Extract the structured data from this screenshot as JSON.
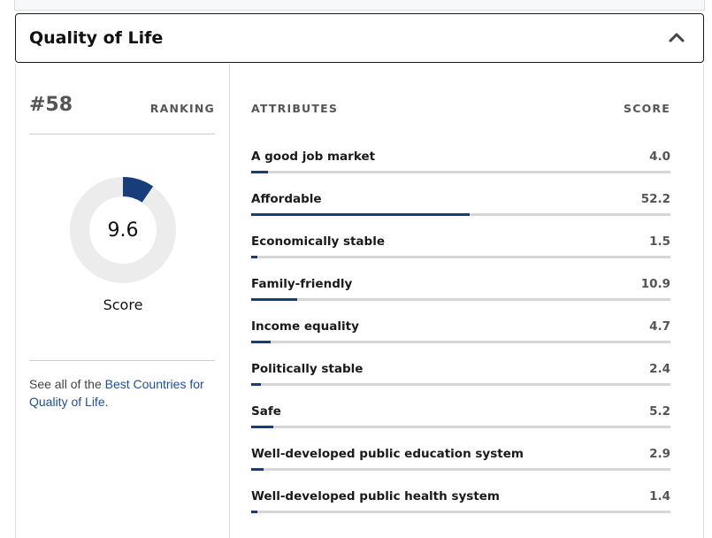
{
  "panel": {
    "title": "Quality of Life"
  },
  "summary": {
    "rank": "#58",
    "rank_label": "RANKING",
    "score": "9.6",
    "score_fraction": 0.096,
    "score_label": "Score",
    "see_all_prefix": "See all of the ",
    "see_all_link": "Best Countries for Quality of Life",
    "see_all_suffix": "."
  },
  "attributes": {
    "header_label": "ATTRIBUTES",
    "score_header": "SCORE",
    "items": [
      {
        "label": "A good job market",
        "score": "4.0"
      },
      {
        "label": "Affordable",
        "score": "52.2"
      },
      {
        "label": "Economically stable",
        "score": "1.5"
      },
      {
        "label": "Family-friendly",
        "score": "10.9"
      },
      {
        "label": "Income equality",
        "score": "4.7"
      },
      {
        "label": "Politically stable",
        "score": "2.4"
      },
      {
        "label": "Safe",
        "score": "5.2"
      },
      {
        "label": "Well-developed public education system",
        "score": "2.9"
      },
      {
        "label": "Well-developed public health system",
        "score": "1.4"
      }
    ]
  },
  "colors": {
    "accent": "#173d7a",
    "link": "#1f4f9c",
    "track": "#d6d6d6",
    "donut_track": "#ececec"
  }
}
